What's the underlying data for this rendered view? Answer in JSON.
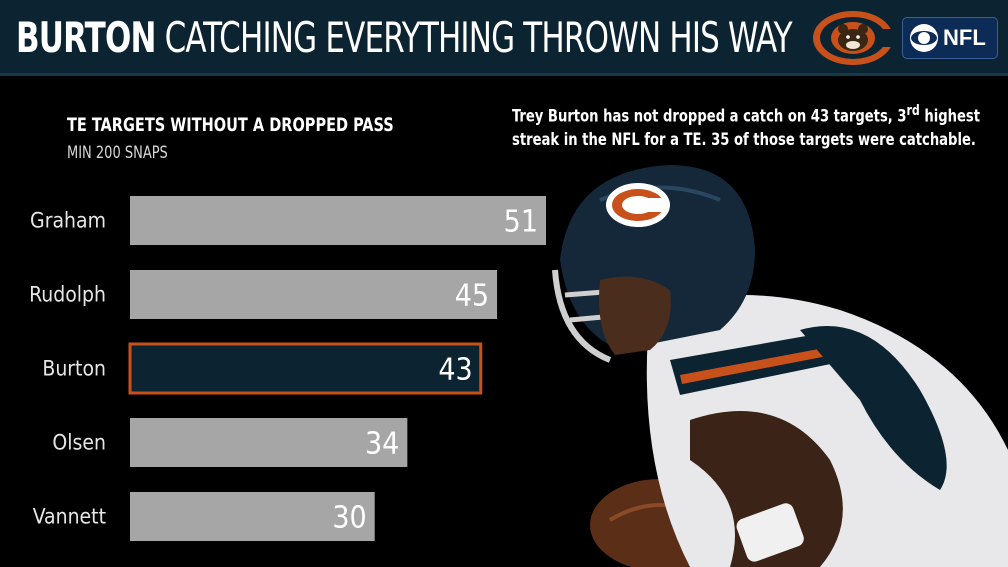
{
  "header": {
    "headline_bold": "BURTON",
    "headline_rest": " CATCHING EVERYTHING THROWN HIS WAY",
    "cbs_label": "NFL"
  },
  "note": {
    "line1_pre": "Trey Burton has not dropped a catch on 43 targets, 3",
    "line1_sup": "rd",
    "line1_post": " highest",
    "line2": "streak in the NFL for a TE. 35 of those targets were catchable."
  },
  "colors": {
    "bar_default": "#a6a6a6",
    "bar_highlight": "#0c2432",
    "highlight_border": "#c8511b",
    "header_bg": "#0c2432"
  },
  "chart_data": {
    "type": "bar",
    "orientation": "horizontal",
    "title": "TE TARGETS WITHOUT A DROPPED PASS",
    "subtitle": "MIN 200 SNAPS",
    "categories": [
      "Graham",
      "Rudolph",
      "Burton",
      "Olsen",
      "Vannett"
    ],
    "values": [
      51,
      45,
      43,
      34,
      30
    ],
    "highlight": "Burton",
    "xlim": [
      0,
      51
    ],
    "grid": false,
    "legend": "none"
  }
}
